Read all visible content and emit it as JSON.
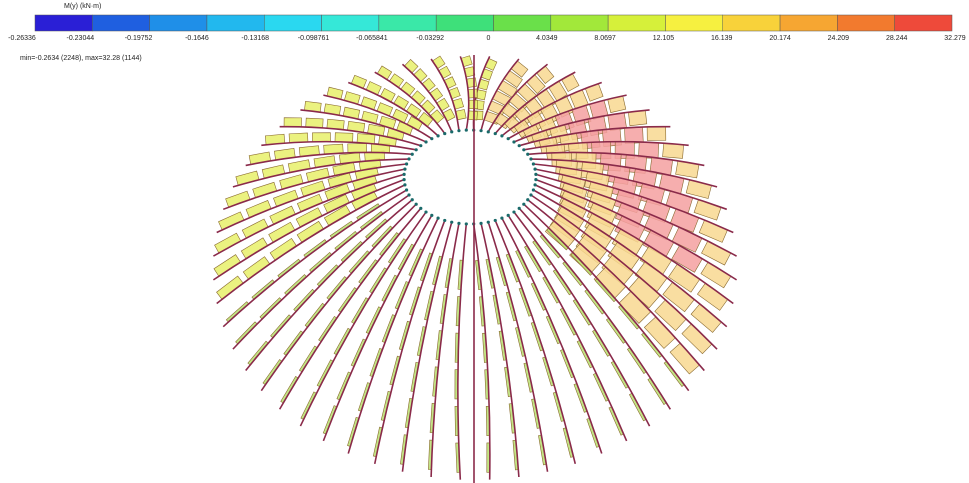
{
  "legend": {
    "unit": "M(y) (kN·m)",
    "colors": [
      "#2a1fd6",
      "#1f5fe0",
      "#1f8fe8",
      "#22b8ee",
      "#2ad8f0",
      "#35e8d8",
      "#3ae8a8",
      "#3ee07a",
      "#6ae04a",
      "#a2e83a",
      "#d6f03a",
      "#f6f040",
      "#f8d23a",
      "#f6a632",
      "#f27a2e",
      "#ee4a3a"
    ],
    "labels": [
      "-0.26336",
      "-0.23044",
      "-0.19752",
      "-0.1646",
      "-0.13168",
      "-0.098761",
      "-0.065841",
      "-0.03292",
      "0",
      "4.0349",
      "8.0697",
      "12.105",
      "16.139",
      "20.174",
      "24.209",
      "28.244",
      "32.279"
    ]
  },
  "status": "min=-0.2634 (2248), max=32.28 (1144)"
}
